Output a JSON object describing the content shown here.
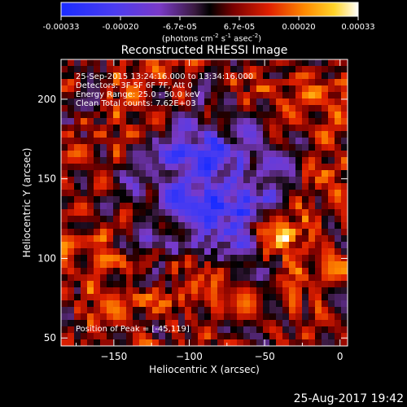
{
  "colorbar": {
    "ticks": [
      "-0.00033",
      "-0.00020",
      "-6.7e-05",
      "6.7e-05",
      "0.00020",
      "0.00033"
    ],
    "units_prefix": "(photons cm",
    "units_sup1": "-2",
    "units_mid1": " s",
    "units_sup2": "-1",
    "units_mid2": " asec",
    "units_sup3": "-2",
    "units_suffix": ")"
  },
  "title": "Reconstructed RHESSI Image",
  "annotations": {
    "line1": "25-Sep-2015 13:24:16.000 to 13:34:16.000",
    "line2": "Detectors: 3F 5F 6F 7F, Att 0",
    "line3": "Energy Range: 25.0 - 50.0 keV",
    "line4": "Clean    Total counts: 7.62E+03",
    "peak": "Position of Peak = [-45,119]"
  },
  "footer": "25-Aug-2017 19:42",
  "chart_data": {
    "type": "heatmap",
    "title": "Reconstructed RHESSI Image",
    "xlabel": "Heliocentric X (arcsec)",
    "ylabel": "Heliocentric Y (arcsec)",
    "xlim": [
      -185,
      5
    ],
    "ylim": [
      45,
      225
    ],
    "xticks": [
      -150,
      -100,
      -50,
      0
    ],
    "yticks": [
      50,
      100,
      150,
      200
    ],
    "xtick_labels": [
      "−150",
      "−100",
      "−50",
      "0"
    ],
    "ytick_labels": [
      "50",
      "100",
      "150",
      "200"
    ],
    "zlim": [
      -0.00033,
      0.00033
    ],
    "colormap": "blue-purple-black-red-yellow-white",
    "peak": [
      -45,
      119
    ]
  }
}
